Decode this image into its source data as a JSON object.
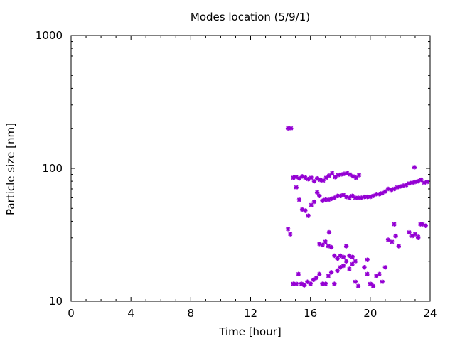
{
  "chart_data": {
    "type": "scatter",
    "title": "Modes location (5/9/1)",
    "xlabel": "Time [hour]",
    "ylabel": "Particle size [nm]",
    "xlim": [
      0,
      24
    ],
    "ylim": [
      10,
      1000
    ],
    "yscale": "log",
    "grid": false,
    "x_ticks": [
      0,
      4,
      8,
      12,
      16,
      20,
      24
    ],
    "x_tick_labels": [
      "0",
      "4",
      "8",
      "12",
      "16",
      "20",
      "24"
    ],
    "y_ticks": [
      10,
      100,
      1000
    ],
    "y_tick_labels": [
      "10",
      "100",
      "1000"
    ],
    "marker": "asterisk",
    "color": "#9400d3",
    "series": [
      {
        "points": [
          [
            14.5,
            200
          ],
          [
            14.7,
            200
          ],
          [
            14.5,
            35
          ],
          [
            14.65,
            32
          ],
          [
            14.85,
            85
          ],
          [
            15.05,
            86
          ],
          [
            15.25,
            84
          ],
          [
            15.45,
            87
          ],
          [
            15.65,
            85
          ],
          [
            15.85,
            83
          ],
          [
            16.05,
            85
          ],
          [
            16.25,
            80
          ],
          [
            16.45,
            84
          ],
          [
            16.65,
            82
          ],
          [
            16.85,
            81
          ],
          [
            17.05,
            85
          ],
          [
            17.25,
            88
          ],
          [
            17.45,
            92
          ],
          [
            17.65,
            86
          ],
          [
            17.85,
            89
          ],
          [
            18.05,
            90
          ],
          [
            18.25,
            91
          ],
          [
            18.45,
            92
          ],
          [
            18.65,
            90
          ],
          [
            18.85,
            87
          ],
          [
            19.05,
            85
          ],
          [
            19.25,
            89
          ],
          [
            15.05,
            72
          ],
          [
            15.25,
            58
          ],
          [
            15.45,
            49
          ],
          [
            15.65,
            48
          ],
          [
            15.85,
            44
          ],
          [
            16.05,
            53
          ],
          [
            16.25,
            56
          ],
          [
            16.45,
            66
          ],
          [
            16.6,
            62
          ],
          [
            16.8,
            57
          ],
          [
            17.0,
            58
          ],
          [
            17.2,
            58
          ],
          [
            17.4,
            59
          ],
          [
            17.6,
            60
          ],
          [
            17.8,
            62
          ],
          [
            18.0,
            62
          ],
          [
            18.2,
            63
          ],
          [
            18.4,
            61
          ],
          [
            18.6,
            60
          ],
          [
            18.8,
            62
          ],
          [
            19.0,
            60
          ],
          [
            19.2,
            60
          ],
          [
            19.4,
            60
          ],
          [
            19.6,
            61
          ],
          [
            19.8,
            61
          ],
          [
            20.0,
            61
          ],
          [
            20.2,
            62
          ],
          [
            20.4,
            64
          ],
          [
            20.6,
            64
          ],
          [
            20.8,
            65
          ],
          [
            21.0,
            67
          ],
          [
            21.2,
            70
          ],
          [
            21.4,
            69
          ],
          [
            21.6,
            70
          ],
          [
            21.8,
            72
          ],
          [
            22.0,
            73
          ],
          [
            22.2,
            74
          ],
          [
            22.4,
            75
          ],
          [
            22.6,
            77
          ],
          [
            22.8,
            78
          ],
          [
            23.0,
            79
          ],
          [
            23.2,
            80
          ],
          [
            23.4,
            82
          ],
          [
            23.6,
            78
          ],
          [
            23.8,
            79
          ],
          [
            22.95,
            102
          ],
          [
            14.85,
            13.5
          ],
          [
            15.05,
            13.5
          ],
          [
            15.2,
            16
          ],
          [
            15.4,
            13.5
          ],
          [
            15.6,
            13.2
          ],
          [
            15.8,
            14
          ],
          [
            16.0,
            13.5
          ],
          [
            16.2,
            14.5
          ],
          [
            16.4,
            15
          ],
          [
            16.6,
            16
          ],
          [
            16.8,
            13.5
          ],
          [
            17.0,
            13.5
          ],
          [
            17.2,
            15.5
          ],
          [
            17.4,
            16.5
          ],
          [
            17.6,
            13.5
          ],
          [
            17.8,
            17
          ],
          [
            18.0,
            18
          ],
          [
            18.2,
            18.5
          ],
          [
            18.4,
            20
          ],
          [
            18.6,
            17.5
          ],
          [
            18.8,
            19
          ],
          [
            19.0,
            14
          ],
          [
            19.2,
            13
          ],
          [
            19.6,
            18
          ],
          [
            19.8,
            16
          ],
          [
            20.0,
            13.5
          ],
          [
            20.2,
            13
          ],
          [
            20.4,
            15.5
          ],
          [
            20.6,
            16
          ],
          [
            20.8,
            14
          ],
          [
            21.0,
            18
          ],
          [
            16.6,
            27
          ],
          [
            16.8,
            26.5
          ],
          [
            17.0,
            28
          ],
          [
            17.2,
            26
          ],
          [
            17.4,
            25.5
          ],
          [
            17.6,
            22
          ],
          [
            17.8,
            21
          ],
          [
            18.0,
            22
          ],
          [
            18.2,
            21.5
          ],
          [
            18.4,
            26
          ],
          [
            18.6,
            22
          ],
          [
            18.8,
            21.5
          ],
          [
            19.0,
            20
          ],
          [
            19.8,
            20.5
          ],
          [
            17.25,
            33
          ],
          [
            21.2,
            29
          ],
          [
            21.45,
            28
          ],
          [
            21.6,
            38
          ],
          [
            21.7,
            31
          ],
          [
            21.9,
            26
          ],
          [
            22.6,
            33
          ],
          [
            22.8,
            31
          ],
          [
            23.0,
            32
          ],
          [
            23.2,
            30
          ],
          [
            23.35,
            38
          ],
          [
            23.5,
            38
          ],
          [
            23.7,
            37
          ],
          [
            23.2,
            30.5
          ]
        ]
      }
    ]
  }
}
